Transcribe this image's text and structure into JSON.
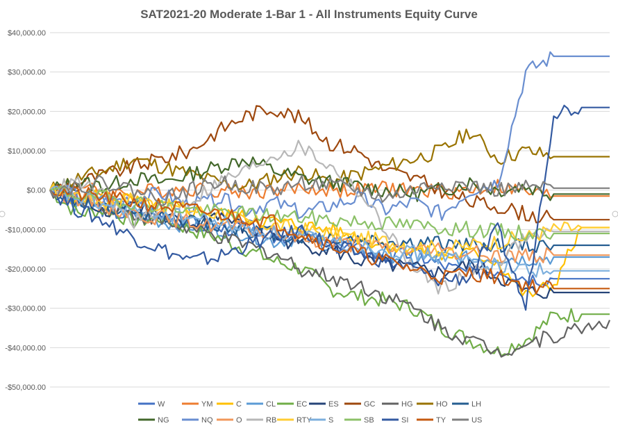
{
  "chart_data": {
    "type": "line",
    "title": "SAT2021-20 Moderate 1-Bar 1 - All Instruments Equity Curve",
    "xlabel": "",
    "ylabel": "",
    "ylim": [
      -50000,
      40000
    ],
    "grid": true,
    "legend_position": "bottom",
    "y_tick_labels": [
      "$40,000.00",
      "$30,000.00",
      "$20,000.00",
      "$10,000.00",
      "$0.00",
      "-$10,000.00",
      "-$20,000.00",
      "-$30,000.00",
      "-$40,000.00",
      "-$50,000.00"
    ],
    "y_ticks": [
      40000,
      30000,
      20000,
      10000,
      0,
      -10000,
      -20000,
      -30000,
      -40000,
      -50000
    ],
    "x": [
      0,
      5,
      10,
      15,
      20,
      25,
      30,
      35,
      40,
      45,
      50,
      55,
      60,
      65,
      70,
      75,
      80,
      85,
      90,
      95,
      100
    ],
    "series": [
      {
        "name": "W",
        "color": "#4472C4",
        "values": [
          0,
          -3000,
          -5000,
          -7000,
          -6000,
          -8000,
          -10000,
          -9000,
          -12000,
          -11000,
          -14000,
          -15000,
          -17000,
          -16000,
          -19000,
          -21000,
          -20000,
          -22000,
          -22500,
          -22500,
          -22500
        ]
      },
      {
        "name": "YM",
        "color": "#ED7D31",
        "values": [
          0,
          1000,
          -1000,
          -500,
          0,
          500,
          0,
          -500,
          0,
          500,
          0,
          0,
          500,
          0,
          -500,
          0,
          1000,
          -500,
          -1500,
          -1500,
          -1500
        ]
      },
      {
        "name": "C",
        "color": "#FFC000",
        "values": [
          0,
          -2000,
          -1000,
          -3000,
          -4000,
          -5000,
          -6000,
          -7000,
          -8000,
          -9000,
          -10000,
          -12000,
          -14000,
          -15000,
          -17000,
          -16000,
          -18000,
          -27000,
          -24000,
          -9500,
          -9500
        ]
      },
      {
        "name": "CL",
        "color": "#5B9BD5",
        "values": [
          0,
          -4000,
          -3000,
          -6000,
          -8000,
          -9000,
          -10000,
          -11000,
          -13000,
          -12000,
          -14000,
          -15000,
          -16000,
          -18000,
          -17000,
          -17500,
          -17000,
          -17500,
          -17000,
          -17000,
          -17000
        ]
      },
      {
        "name": "EC",
        "color": "#70AD47",
        "values": [
          0,
          -6000,
          -5000,
          -8000,
          -7000,
          -10000,
          -12000,
          -15000,
          -18000,
          -20000,
          -25000,
          -27000,
          -28000,
          -30000,
          -35000,
          -38000,
          -41000,
          -38000,
          -32000,
          -31500,
          -31500
        ]
      },
      {
        "name": "ES",
        "color": "#264478",
        "values": [
          0,
          -2000,
          -5000,
          -3000,
          -7000,
          -9000,
          -6000,
          -10000,
          -12000,
          -14000,
          -15000,
          -18000,
          -19000,
          -20000,
          -21000,
          -19000,
          -22000,
          -26000,
          -26000,
          -26000,
          -26000
        ]
      },
      {
        "name": "GC",
        "color": "#9E480E",
        "values": [
          0,
          2000,
          4000,
          6000,
          8000,
          10000,
          15000,
          19000,
          21000,
          18000,
          12000,
          10000,
          5000,
          3000,
          0,
          -3000,
          -4000,
          -6000,
          -7500,
          -7500,
          -7500
        ]
      },
      {
        "name": "HG",
        "color": "#636363",
        "values": [
          0,
          -2000,
          -4000,
          -6000,
          -8000,
          -10000,
          -12000,
          -14000,
          -16000,
          -20000,
          -22000,
          -24000,
          -27000,
          -30000,
          -35000,
          -38000,
          -41000,
          -39000,
          -37000,
          -35000,
          -33000
        ]
      },
      {
        "name": "HO",
        "color": "#997300",
        "values": [
          0,
          3000,
          5000,
          8000,
          6000,
          4000,
          2000,
          1000,
          3000,
          5000,
          2000,
          4000,
          6000,
          8000,
          10000,
          15000,
          8000,
          10000,
          8500,
          8500,
          8500
        ]
      },
      {
        "name": "LH",
        "color": "#255E91",
        "values": [
          0,
          -3000,
          -5000,
          -7000,
          -6000,
          -8000,
          -9000,
          -10000,
          -11000,
          -12000,
          -12000,
          -12500,
          -13000,
          -13500,
          -13500,
          -14000,
          -14000,
          -14000,
          -14000,
          -14000,
          -14000
        ]
      },
      {
        "name": "NG",
        "color": "#43682B",
        "values": [
          0,
          2000,
          1000,
          3000,
          2000,
          4000,
          6000,
          8000,
          5000,
          3000,
          2000,
          1000,
          0,
          -1000,
          0,
          2000,
          0,
          1000,
          -1000,
          -1000,
          -1000
        ]
      },
      {
        "name": "NQ",
        "color": "#698ED0",
        "values": [
          0,
          -1000,
          -3000,
          -2000,
          -1000,
          -4000,
          -2000,
          -5000,
          -3000,
          -6000,
          -4000,
          -2000,
          -5000,
          -3000,
          -6000,
          0,
          2000,
          30000,
          34000,
          34000,
          34000
        ]
      },
      {
        "name": "O",
        "color": "#F1975A",
        "values": [
          0,
          -2000,
          -4000,
          -6000,
          -7000,
          -8000,
          -9000,
          -10000,
          -11000,
          -12000,
          -13000,
          -14000,
          -14500,
          -15000,
          -15500,
          -16000,
          -16500,
          -16500,
          -16500,
          -16500,
          -16500
        ]
      },
      {
        "name": "RB",
        "color": "#B7B7B7",
        "values": [
          0,
          2000,
          -2000,
          -8000,
          -5000,
          -3000,
          2000,
          5000,
          9000,
          11000,
          6000,
          0,
          -10000,
          -20000,
          -25000,
          -21000,
          -18000,
          -12000,
          -10500,
          -10500,
          -10500
        ]
      },
      {
        "name": "RTY",
        "color": "#FFCD33",
        "values": [
          0,
          -1000,
          -3000,
          -2000,
          -4000,
          -5000,
          -6000,
          -8000,
          -9000,
          -10000,
          -11000,
          -12000,
          -13000,
          -14000,
          -15000,
          -14000,
          -13000,
          -12000,
          -10000,
          -9500,
          -9500
        ]
      },
      {
        "name": "S",
        "color": "#7CAFDD",
        "values": [
          0,
          -2000,
          -4000,
          -5000,
          -6000,
          -7000,
          -8000,
          -10000,
          -11000,
          -12000,
          -13000,
          -14000,
          -15000,
          -16000,
          -17000,
          -18000,
          -19000,
          -20000,
          -20500,
          -20500,
          -20500
        ]
      },
      {
        "name": "SB",
        "color": "#8CC168",
        "values": [
          0,
          -1000,
          -2000,
          -3000,
          -4000,
          -5000,
          -5500,
          -6000,
          -6500,
          -7000,
          -7500,
          -8000,
          -8500,
          -9000,
          -9500,
          -10000,
          -10500,
          -11000,
          -11000,
          -11000,
          -11000
        ]
      },
      {
        "name": "SI",
        "color": "#335AA1",
        "values": [
          0,
          -5000,
          -8000,
          -12000,
          -15000,
          -18000,
          -17000,
          -14000,
          -12000,
          -10000,
          -14000,
          -16000,
          -18000,
          -20000,
          -23000,
          -22000,
          -10000,
          -30000,
          20000,
          21000,
          21000
        ]
      },
      {
        "name": "TY",
        "color": "#C55A11",
        "values": [
          0,
          -1000,
          -2000,
          -3000,
          -4000,
          -5000,
          -6000,
          -7000,
          -8000,
          -11000,
          -14000,
          -16000,
          -18000,
          -20000,
          -22000,
          -21000,
          -22000,
          -24000,
          -25000,
          -25000,
          -25000
        ]
      },
      {
        "name": "US",
        "color": "#7F7F7F",
        "values": [
          0,
          1000,
          2000,
          0,
          -2000,
          0,
          2000,
          1000,
          0,
          2000,
          1000,
          0,
          -2000,
          0,
          2000,
          1000,
          0,
          500,
          500,
          500,
          500
        ]
      }
    ]
  }
}
